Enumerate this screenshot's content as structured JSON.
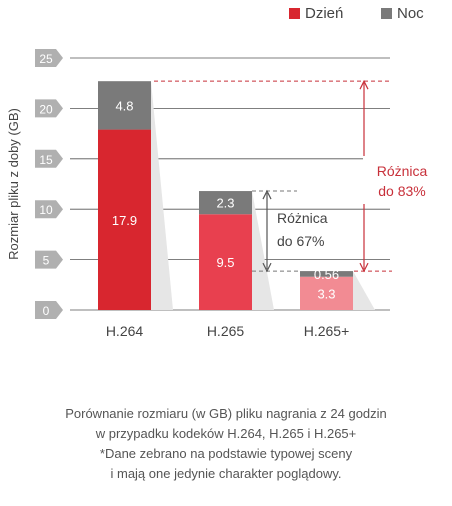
{
  "chart_data": {
    "type": "bar",
    "stacked": true,
    "categories": [
      "H.264",
      "H.265",
      "H.265+"
    ],
    "series": [
      {
        "name": "Dzień",
        "values": [
          17.9,
          9.5,
          3.3
        ],
        "labels": [
          "17.9",
          "9.5",
          "3.3"
        ]
      },
      {
        "name": "Noc",
        "values": [
          4.8,
          2.3,
          0.56
        ],
        "labels": [
          "4.8",
          "2.3",
          "0.56"
        ]
      }
    ],
    "ylabel": "Rozmiar pliku z doby (GB)",
    "ylim": [
      0,
      25
    ],
    "yticks": [
      0,
      5,
      10,
      15,
      20,
      25
    ],
    "legend_position": "top-right",
    "grid": true,
    "annotations": [
      {
        "lines": [
          "Różnica",
          "do 83%"
        ],
        "color": "#c8303a",
        "from": "H.264",
        "to": "H.265+"
      },
      {
        "lines": [
          "Różnica",
          "do 67%"
        ],
        "color": "#444444",
        "from": "H.265",
        "to": "H.265+"
      }
    ],
    "colors": {
      "day": [
        "#d8262f",
        "#e8404f",
        "#f28b93"
      ],
      "night": "#7a7a7a",
      "tick_box": "#b0b0b0",
      "annotation_red": "#c8303a",
      "grid": "#555555"
    }
  },
  "caption": {
    "lines": [
      "Porównanie rozmiaru (w GB) pliku nagrania z 24 godzin",
      "w przypadku kodeków H.264, H.265 i H.265+",
      "*Dane zebrano na podstawie typowej sceny",
      "i mają one jedynie charakter poglądowy."
    ]
  }
}
